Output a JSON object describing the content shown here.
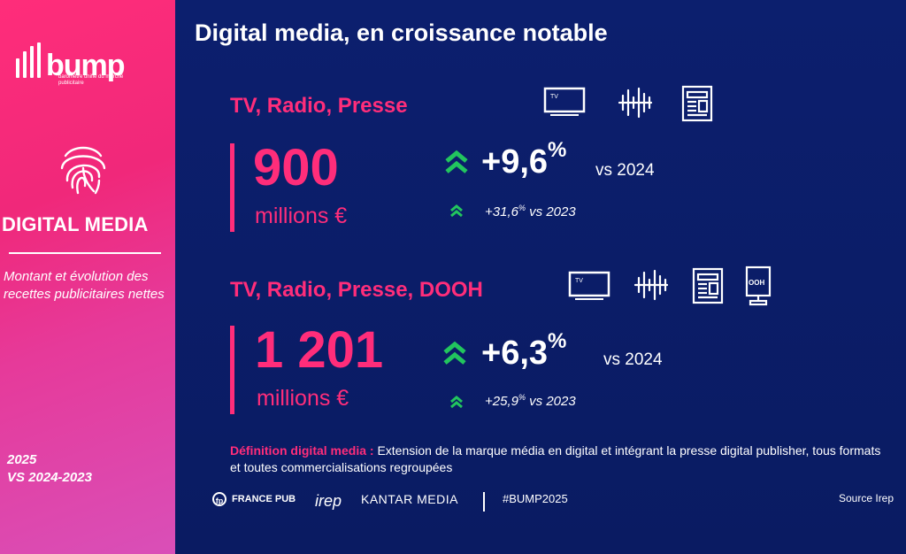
{
  "sidebar": {
    "logo_text": "bump",
    "logo_subtitle": "baromètre unifié du marché publicitaire",
    "section_title": "DIGITAL MEDIA",
    "description": "Montant et évolution des recettes publicitaires nettes",
    "year_line1": "2025",
    "year_line2": "VS 2024-2023"
  },
  "main": {
    "title": "Digital media, en croissance notable",
    "block1": {
      "heading": "TV, Radio, Presse",
      "amount": "900",
      "unit": "millions €",
      "growth": "+9,6",
      "growth_sup": "%",
      "growth_vs": "vs 2024",
      "growth2_prefix": "+31,6",
      "growth2_sup": "%",
      "growth2_vs": " vs 2023",
      "icons": [
        "tv-icon",
        "radio-icon",
        "newspaper-icon"
      ],
      "tv_label": "TV"
    },
    "block2": {
      "heading": "TV, Radio, Presse, DOOH",
      "amount": "1 201",
      "unit": "millions €",
      "growth": "+6,3",
      "growth_sup": "%",
      "growth_vs": "vs 2024",
      "growth2_prefix": "+25,9",
      "growth2_sup": "%",
      "growth2_vs": " vs 2023",
      "icons": [
        "tv-icon",
        "radio-icon",
        "newspaper-icon",
        "dooh-icon"
      ],
      "tv_label": "TV",
      "dooh_label": "OOH"
    },
    "definition_label": "Définition digital media :",
    "definition_text": " Extension de la marque média en digital et intégrant la presse digital publisher, tous formats et toutes commercialisations regroupées"
  },
  "footer": {
    "france_pub": "FRANCE PUB",
    "france_pub_mark": "fp",
    "irep": "irep",
    "kantar": "KANTAR MEDIA",
    "hashtag": "#BUMP2025",
    "source": "Source Irep"
  },
  "colors": {
    "accent": "#ff2d7a",
    "background": "#0b1f6b",
    "growth": "#22c55e"
  }
}
